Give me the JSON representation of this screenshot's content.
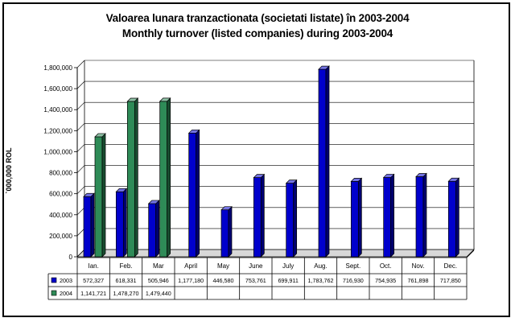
{
  "chart_data": {
    "type": "bar",
    "title": "Valoarea lunara tranzactionata (societati listate) în 2003-2004",
    "subtitle": "Monthly turnover (listed companies) during 2003-2004",
    "ylabel": "`000,000 ROL",
    "ylim": [
      0,
      1800000
    ],
    "yticks": [
      "0",
      "200,000",
      "400,000",
      "600,000",
      "800,000",
      "1,000,000",
      "1,200,000",
      "1,400,000",
      "1,600,000",
      "1,800,000"
    ],
    "categories": [
      "Ian.",
      "Feb.",
      "Mar",
      "April",
      "May",
      "June",
      "July",
      "Aug.",
      "Sept.",
      "Oct.",
      "Nov.",
      "Dec."
    ],
    "series": [
      {
        "name": "2003",
        "color": "#0000cc",
        "values": [
          572327,
          618331,
          505946,
          1177180,
          446580,
          753761,
          699911,
          1783762,
          716930,
          754935,
          761898,
          717850
        ],
        "labels": [
          "572,327",
          "618,331",
          "505,946",
          "1,177,180",
          "446,580",
          "753,761",
          "699,911",
          "1,783,762",
          "716,930",
          "754,935",
          "761,898",
          "717,850"
        ]
      },
      {
        "name": "2004",
        "color": "#2e8b57",
        "values": [
          1141721,
          1478270,
          1479440,
          null,
          null,
          null,
          null,
          null,
          null,
          null,
          null,
          null
        ],
        "labels": [
          "1,141,721",
          "1,478,270",
          "1,479,440",
          "",
          "",
          "",
          "",
          "",
          "",
          "",
          "",
          ""
        ]
      }
    ],
    "legend": "data-table",
    "grid": true
  }
}
